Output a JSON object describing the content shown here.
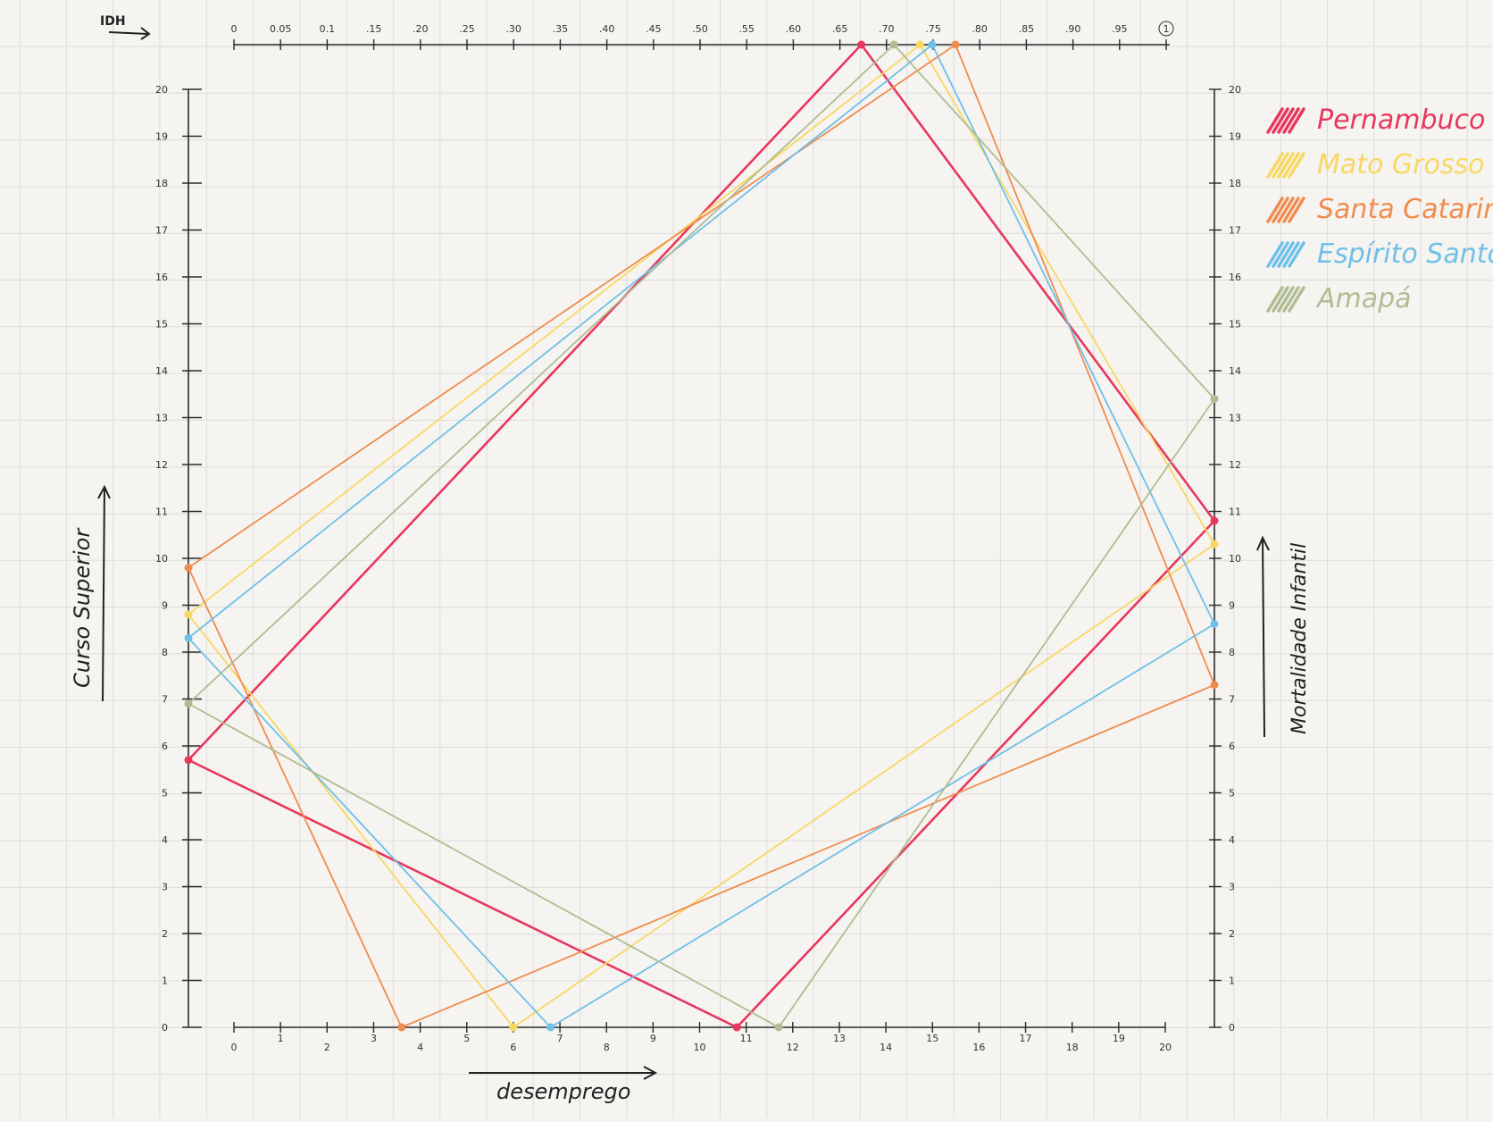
{
  "chart_data": {
    "type": "parallel-coordinates",
    "axes": {
      "idh": {
        "label": "IDH",
        "ticks": [
          "0",
          "0.05",
          "0.1",
          ".15",
          ".20",
          ".25",
          ".30",
          ".35",
          ".40",
          ".45",
          ".50",
          ".55",
          ".60",
          ".65",
          ".70",
          ".75",
          ".80",
          ".85",
          ".90",
          ".95",
          "1"
        ],
        "range": [
          0,
          1
        ]
      },
      "curso_superior": {
        "label": "Curso Superior",
        "ticks": [
          "0",
          "1",
          "2",
          "3",
          "4",
          "5",
          "6",
          "7",
          "8",
          "9",
          "10",
          "11",
          "12",
          "13",
          "14",
          "15",
          "16",
          "17",
          "18",
          "19",
          "20"
        ],
        "range": [
          0,
          20
        ]
      },
      "desemprego": {
        "label": "desemprego",
        "ticks": [
          "0",
          "1",
          "2",
          "3",
          "4",
          "5",
          "6",
          "7",
          "8",
          "9",
          "10",
          "11",
          "12",
          "13",
          "14",
          "15",
          "16",
          "17",
          "18",
          "19",
          "20"
        ],
        "range": [
          0,
          20
        ]
      },
      "mortalidade_infantil": {
        "label": "Mortalidade Infantil",
        "ticks": [
          "0",
          "1",
          "2",
          "3",
          "4",
          "5",
          "6",
          "7",
          "8",
          "9",
          "10",
          "11",
          "12",
          "13",
          "14",
          "15",
          "16",
          "17",
          "18",
          "19",
          "20"
        ],
        "range": [
          0,
          20
        ]
      }
    },
    "series": [
      {
        "name": "Pernambuco",
        "color": "#e8375d",
        "idh": 0.673,
        "curso_superior": 5.7,
        "desemprego": 10.8,
        "mortalidade_infantil": 10.8
      },
      {
        "name": "Mato Grosso do Sul",
        "color": "#f7d862",
        "idh": 0.736,
        "curso_superior": 8.8,
        "desemprego": 6.0,
        "mortalidade_infantil": 10.3
      },
      {
        "name": "Santa Catarina",
        "color": "#ef8c4f",
        "idh": 0.774,
        "curso_superior": 9.8,
        "desemprego": 3.6,
        "mortalidade_infantil": 7.3
      },
      {
        "name": "Espírito Santo",
        "color": "#6fc0e8",
        "idh": 0.749,
        "curso_superior": 8.3,
        "desemprego": 6.8,
        "mortalidade_infantil": 8.6
      },
      {
        "name": "Amapá",
        "color": "#b0bc92",
        "idh": 0.708,
        "curso_superior": 6.9,
        "desemprego": 11.7,
        "mortalidade_infantil": 13.4
      }
    ]
  }
}
